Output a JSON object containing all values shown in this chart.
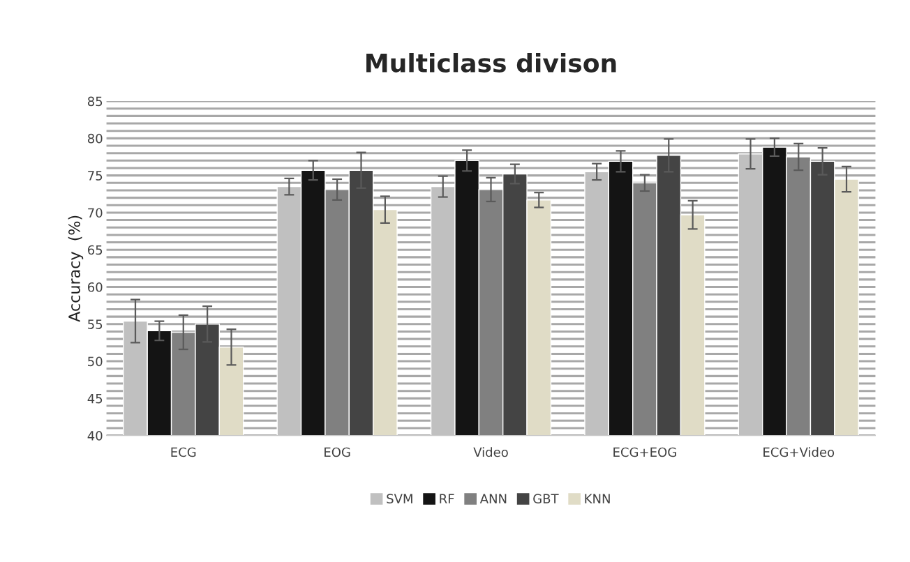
{
  "chart_data": {
    "type": "bar",
    "title": "Multiclass divison",
    "ylabel": "Accuracy  (%)",
    "categories": [
      "ECG",
      "EOG",
      "Video",
      "ECG+EOG",
      "ECG+Video"
    ],
    "series": [
      {
        "name": "SVM",
        "color": "#c0c0c0",
        "values": [
          55.4,
          73.5,
          73.5,
          75.5,
          77.9
        ],
        "errors": [
          2.9,
          1.1,
          1.4,
          1.1,
          2.0
        ]
      },
      {
        "name": "RF",
        "color": "#141414",
        "values": [
          54.1,
          75.7,
          77.0,
          76.9,
          78.8
        ],
        "errors": [
          1.3,
          1.3,
          1.4,
          1.4,
          1.2
        ]
      },
      {
        "name": "ANN",
        "color": "#808080",
        "values": [
          53.9,
          73.1,
          73.1,
          74.0,
          77.5
        ],
        "errors": [
          2.3,
          1.4,
          1.6,
          1.1,
          1.8
        ]
      },
      {
        "name": "GBT",
        "color": "#444444",
        "values": [
          55.0,
          75.7,
          75.2,
          77.7,
          76.9
        ],
        "errors": [
          2.4,
          2.4,
          1.3,
          2.2,
          1.8
        ]
      },
      {
        "name": "KNN",
        "color": "#e0dcc6",
        "values": [
          51.9,
          70.4,
          71.7,
          69.7,
          74.5
        ],
        "errors": [
          2.4,
          1.8,
          1.0,
          1.9,
          1.7
        ]
      }
    ],
    "ylim": [
      40,
      85
    ],
    "yticks": [
      40,
      {
        "value": 41,
        "label": null
      },
      {
        "value": 42,
        "label": null
      },
      {
        "value": 43,
        "label": null
      },
      {
        "value": 44,
        "label": null
      },
      45,
      {
        "value": 46,
        "label": null
      },
      {
        "value": 47,
        "label": null
      },
      {
        "value": 48,
        "label": null
      },
      {
        "value": 49,
        "label": null
      },
      50,
      {
        "value": 51,
        "label": null
      },
      {
        "value": 52,
        "label": null
      },
      {
        "value": 53,
        "label": null
      },
      {
        "value": 54,
        "label": null
      },
      55,
      {
        "value": 56,
        "label": null
      },
      {
        "value": 57,
        "label": null
      },
      {
        "value": 58,
        "label": null
      },
      {
        "value": 59,
        "label": null
      },
      60,
      {
        "value": 61,
        "label": null
      },
      {
        "value": 62,
        "label": null
      },
      {
        "value": 63,
        "label": null
      },
      {
        "value": 64,
        "label": null
      },
      65,
      {
        "value": 66,
        "label": null
      },
      {
        "value": 67,
        "label": null
      },
      {
        "value": 68,
        "label": null
      },
      {
        "value": 69,
        "label": null
      },
      70,
      {
        "value": 71,
        "label": null
      },
      {
        "value": 72,
        "label": null
      },
      {
        "value": 73,
        "label": null
      },
      {
        "value": 74,
        "label": null
      },
      75,
      {
        "value": 76,
        "label": null
      },
      {
        "value": 77,
        "label": null
      },
      {
        "value": 78,
        "label": null
      },
      {
        "value": 79,
        "label": null
      },
      80,
      {
        "value": 81,
        "label": null
      },
      {
        "value": 82,
        "label": null
      },
      {
        "value": 83,
        "label": null
      },
      {
        "value": 84,
        "label": null
      },
      85
    ],
    "grid": "y",
    "legend": "bottom"
  }
}
